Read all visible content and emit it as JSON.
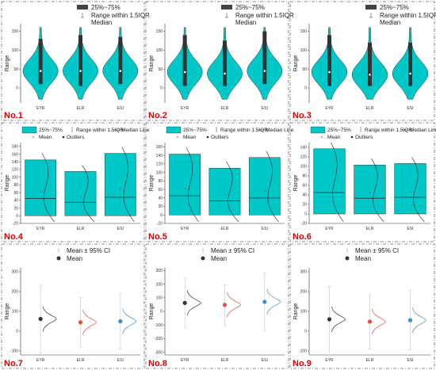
{
  "figure": {
    "background": "#ffffff",
    "accent": "#00c8c8",
    "outline": "#333333",
    "id_color": "#e00000"
  },
  "chart_data": [
    {
      "panel_id": "No.1",
      "type": "violin",
      "ylabel": "Range",
      "categories": [
        "EYR",
        "ELR",
        "ESI"
      ],
      "legend": [
        "25%~75%",
        "Range within 1.5IQR",
        "Median"
      ],
      "ylim": [
        -40,
        170
      ],
      "yticks": [
        0,
        50,
        100,
        150
      ],
      "series": [
        {
          "name": "EYR",
          "min": -30,
          "max": 160,
          "q1": 10,
          "q3": 130,
          "median": 45,
          "mean": 45
        },
        {
          "name": "ELR",
          "min": -30,
          "max": 160,
          "q1": 5,
          "q3": 140,
          "median": 45,
          "mean": 45
        },
        {
          "name": "ESI",
          "min": -30,
          "max": 160,
          "q1": 10,
          "q3": 135,
          "median": 45,
          "mean": 45
        }
      ]
    },
    {
      "panel_id": "No.2",
      "type": "violin",
      "ylabel": "Range",
      "categories": [
        "EYR",
        "ELR",
        "ESI"
      ],
      "legend": [
        "25%~75%",
        "Range within 1.5IQR",
        "Median"
      ],
      "ylim": [
        -40,
        170
      ],
      "yticks": [
        0,
        50,
        100,
        150
      ],
      "series": [
        {
          "name": "EYR",
          "min": -30,
          "max": 160,
          "q1": 5,
          "q3": 140,
          "median": 42,
          "mean": 42
        },
        {
          "name": "ELR",
          "min": -30,
          "max": 160,
          "q1": 5,
          "q3": 125,
          "median": 38,
          "mean": 38
        },
        {
          "name": "ESI",
          "min": -30,
          "max": 160,
          "q1": 10,
          "q3": 150,
          "median": 45,
          "mean": 45
        }
      ]
    },
    {
      "panel_id": "No.3",
      "type": "violin",
      "ylabel": "Range",
      "categories": [
        "EYR",
        "ELR",
        "ESI"
      ],
      "legend": [
        "25%~75%",
        "Range within 1.5IQR",
        "Median"
      ],
      "ylim": [
        -40,
        170
      ],
      "yticks": [
        0,
        50,
        100,
        150
      ],
      "series": [
        {
          "name": "EYR",
          "min": -30,
          "max": 160,
          "q1": 5,
          "q3": 140,
          "median": 42,
          "mean": 42
        },
        {
          "name": "ELR",
          "min": -30,
          "max": 160,
          "q1": 5,
          "q3": 120,
          "median": 35,
          "mean": 35
        },
        {
          "name": "ESI",
          "min": -30,
          "max": 160,
          "q1": 5,
          "q3": 120,
          "median": 38,
          "mean": 38
        }
      ]
    },
    {
      "panel_id": "No.4",
      "type": "box",
      "ylabel": "Range",
      "categories": [
        "EYR",
        "ELR",
        "ESI"
      ],
      "legend": [
        "25%~75%",
        "Range within 1.5IQR",
        "Median Line",
        "Mean",
        "Outliers"
      ],
      "ylim": [
        -20,
        190
      ],
      "yticks": [
        -20,
        0,
        20,
        40,
        60,
        80,
        100,
        120,
        140,
        160,
        180
      ],
      "series": [
        {
          "name": "EYR",
          "q1": 0,
          "q3": 145,
          "median": 45,
          "mean": 62
        },
        {
          "name": "ELR",
          "q1": 0,
          "q3": 115,
          "median": 35,
          "mean": 50
        },
        {
          "name": "ESI",
          "q1": 0,
          "q3": 162,
          "median": 48,
          "mean": 70
        }
      ]
    },
    {
      "panel_id": "No.5",
      "type": "box",
      "ylabel": "Range",
      "categories": [
        "EYR",
        "ELR",
        "ESI"
      ],
      "legend": [
        "25%~75%",
        "Range within 1.5IQR",
        "Median Line",
        "Mean",
        "Outliers"
      ],
      "ylim": [
        -20,
        170
      ],
      "yticks": [
        -20,
        0,
        20,
        40,
        60,
        80,
        100,
        120,
        140,
        160
      ],
      "series": [
        {
          "name": "EYR",
          "q1": 0,
          "q3": 143,
          "median": 45,
          "mean": 62
        },
        {
          "name": "ELR",
          "q1": 0,
          "q3": 110,
          "median": 33,
          "mean": 48
        },
        {
          "name": "ESI",
          "q1": 0,
          "q3": 135,
          "median": 40,
          "mean": 58
        }
      ]
    },
    {
      "panel_id": "No.6",
      "type": "box",
      "ylabel": "Range",
      "categories": [
        "EYR",
        "ELR",
        "ESI"
      ],
      "legend": [
        "25%~75%",
        "Range within 1.5IQR",
        "Median Line",
        "Mean",
        "Outliers"
      ],
      "ylim": [
        -20,
        150
      ],
      "yticks": [
        -20,
        0,
        20,
        40,
        60,
        80,
        100,
        120,
        140
      ],
      "series": [
        {
          "name": "EYR",
          "q1": 0,
          "q3": 137,
          "median": 45,
          "mean": 60
        },
        {
          "name": "ELR",
          "q1": 0,
          "q3": 103,
          "median": 33,
          "mean": 45
        },
        {
          "name": "ESI",
          "q1": 0,
          "q3": 106,
          "median": 35,
          "mean": 47
        }
      ]
    },
    {
      "panel_id": "No.7",
      "type": "mean-ci",
      "ylabel": "Range",
      "categories": [
        "EYR",
        "ELR",
        "ESI"
      ],
      "legend": [
        "Mean ± 95% CI",
        "Mean"
      ],
      "ylim": [
        -120,
        320
      ],
      "yticks": [
        -100,
        0,
        100,
        200,
        300
      ],
      "series": [
        {
          "name": "EYR",
          "mean": 62,
          "lo": -110,
          "hi": 232,
          "color": "#333333"
        },
        {
          "name": "ELR",
          "mean": 45,
          "lo": -80,
          "hi": 170,
          "color": "#e74c3c"
        },
        {
          "name": "ESI",
          "mean": 50,
          "lo": -90,
          "hi": 190,
          "color": "#3a8fd0"
        }
      ]
    },
    {
      "panel_id": "No.8",
      "type": "mean-ci",
      "ylabel": "Range",
      "categories": [
        "EYR",
        "ELR",
        "ESI"
      ],
      "legend": [
        "Mean ± 95% CI",
        "Mean"
      ],
      "ylim": [
        -320,
        320
      ],
      "yticks": [
        -300,
        -200,
        -100,
        0,
        100,
        200,
        300
      ],
      "series": [
        {
          "name": "EYR",
          "mean": 62,
          "lo": -120,
          "hi": 245,
          "color": "#333333"
        },
        {
          "name": "ELR",
          "mean": 48,
          "lo": -110,
          "hi": 195,
          "color": "#e74c3c"
        },
        {
          "name": "ESI",
          "mean": 70,
          "lo": -140,
          "hi": 280,
          "color": "#3a8fd0"
        }
      ]
    },
    {
      "panel_id": "No.9",
      "type": "mean-ci",
      "ylabel": "Range",
      "categories": [
        "EYR",
        "ELR",
        "ESI"
      ],
      "legend": [
        "Mean ± 95% CI",
        "Mean"
      ],
      "ylim": [
        -120,
        320
      ],
      "yticks": [
        -100,
        0,
        100,
        200,
        300
      ],
      "series": [
        {
          "name": "EYR",
          "mean": 60,
          "lo": -105,
          "hi": 225,
          "color": "#333333"
        },
        {
          "name": "ELR",
          "mean": 48,
          "lo": -90,
          "hi": 185,
          "color": "#e74c3c"
        },
        {
          "name": "ESI",
          "mean": 55,
          "lo": -95,
          "hi": 205,
          "color": "#3a8fd0"
        }
      ]
    }
  ]
}
